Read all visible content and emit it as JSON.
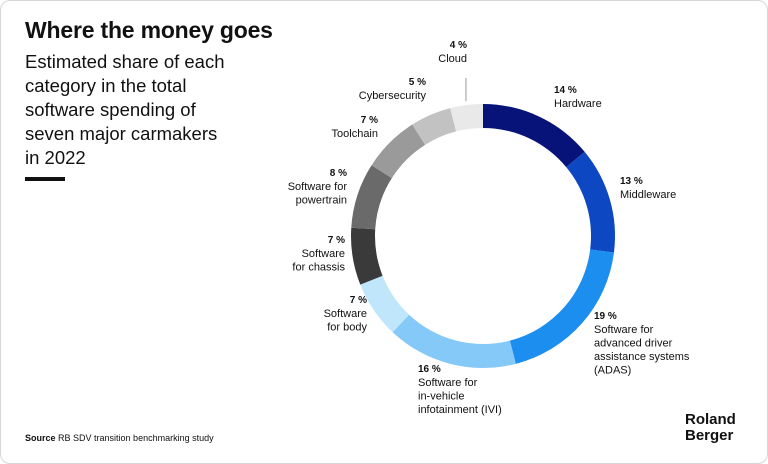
{
  "header": {
    "title": "Where the money goes",
    "subtitle": "Estimated share of each\ncategory in the total\nsoftware spending of\nseven major carmakers\nin 2022"
  },
  "source": {
    "prefix": "Source",
    "text": "RB SDV transition benchmarking study"
  },
  "logo": {
    "text": "Roland\nBerger"
  },
  "chart_data": {
    "type": "pie",
    "variant": "donut",
    "unit": "%",
    "categories": [
      "Hardware",
      "Middleware",
      "Software for advanced driver assistance systems (ADAS)",
      "Software for in-vehicle infotainment (IVI)",
      "Software for body",
      "Software for chassis",
      "Software for powertrain",
      "Toolchain",
      "Cybersecurity",
      "Cloud"
    ],
    "values": [
      14,
      13,
      19,
      16,
      7,
      7,
      8,
      7,
      5,
      4
    ],
    "value_labels": [
      "14 %",
      "13 %",
      "19 %",
      "16 %",
      "7 %",
      "7 %",
      "8 %",
      "7 %",
      "5 %",
      "4 %"
    ],
    "label_lines": [
      [
        "Hardware"
      ],
      [
        "Middleware"
      ],
      [
        "Software for",
        "advanced driver",
        "assistance systems",
        "(ADAS)"
      ],
      [
        "Software for",
        "in-vehicle",
        "infotainment (IVI)"
      ],
      [
        "Software",
        "for body"
      ],
      [
        "Software",
        "for chassis"
      ],
      [
        "Software for",
        "powertrain"
      ],
      [
        "Toolchain"
      ],
      [
        "Cybersecurity"
      ],
      [
        "Cloud"
      ]
    ],
    "colors": [
      "#08137a",
      "#0d47c2",
      "#1c8ef0",
      "#84c9f8",
      "#bfe6fb",
      "#3a3a3a",
      "#6a6a6a",
      "#9a9a9a",
      "#c2c2c2",
      "#e9e9e9"
    ],
    "start": "12 o'clock",
    "direction": "clockwise"
  }
}
